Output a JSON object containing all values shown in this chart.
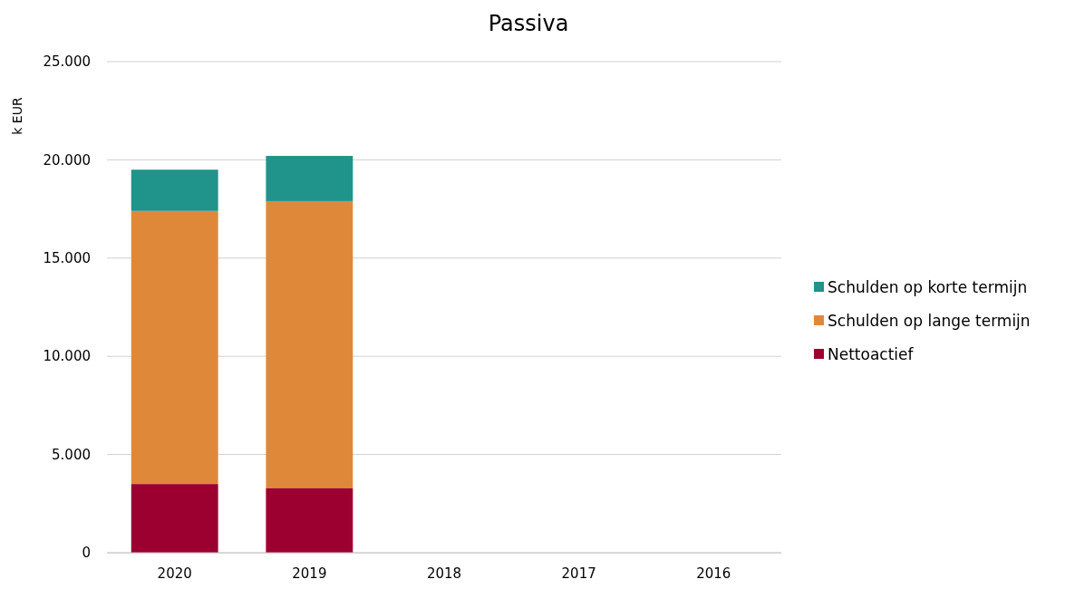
{
  "chart_data": {
    "type": "bar",
    "title": "Passiva",
    "ylabel": "k EUR",
    "stacked": true,
    "categories": [
      "2020",
      "2019",
      "2018",
      "2017",
      "2016"
    ],
    "series": [
      {
        "name": "Nettoactief",
        "color": "#9b0030",
        "values": [
          3500,
          3300,
          null,
          null,
          null
        ]
      },
      {
        "name": "Schulden op lange termijn",
        "color": "#e0883a",
        "values": [
          13900,
          14600,
          null,
          null,
          null
        ]
      },
      {
        "name": "Schulden op korte termijn",
        "color": "#20938b",
        "values": [
          2100,
          2300,
          null,
          null,
          null
        ]
      }
    ],
    "ylim": [
      0,
      25000
    ],
    "yticks": [
      0,
      {
        "value": 5000,
        "label": "5.000"
      },
      {
        "value": 10000,
        "label": "10.000"
      },
      {
        "value": 15000,
        "label": "15.000"
      },
      {
        "value": 20000,
        "label": "20.000"
      },
      {
        "value": 25000,
        "label": "25.000"
      }
    ],
    "grid": "y",
    "legend": "right"
  }
}
